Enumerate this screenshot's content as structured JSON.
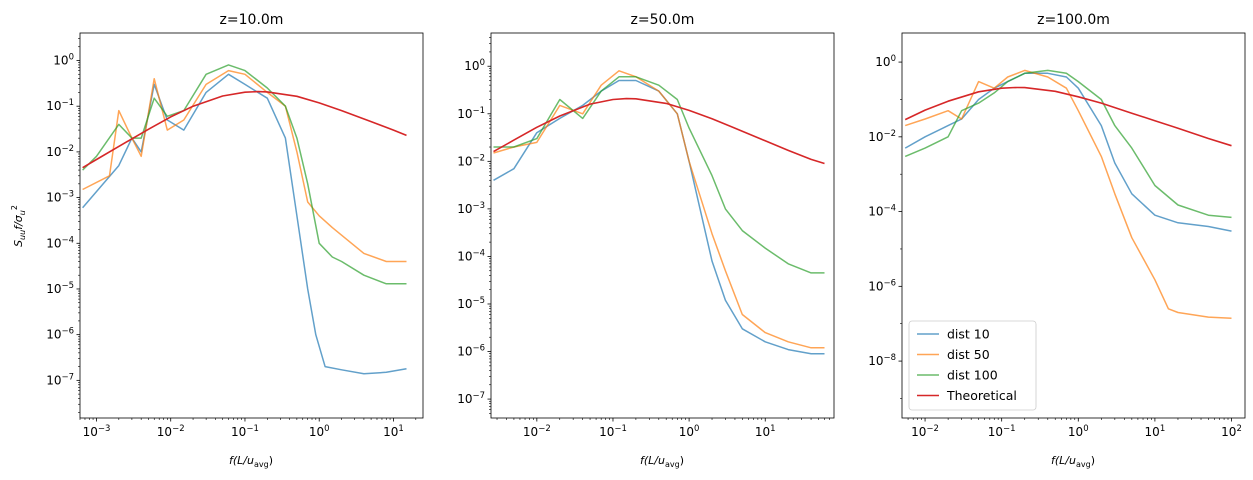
{
  "figure": {
    "ylabel_main": "S",
    "ylabel_sub": "uu",
    "ylabel_mid": "f/σ",
    "ylabel_sub2": "u",
    "ylabel_sup2": "2",
    "xlabel_pre": "f(L/u",
    "xlabel_sub": "avg",
    "xlabel_post": ")"
  },
  "colors": {
    "dist 10": "#1f77b4",
    "dist 50": "#ff7f0e",
    "dist 100": "#2ca02c",
    "Theoretical": "#d62728"
  },
  "legend": {
    "placement": "lower-left of third panel",
    "entries": [
      "dist 10",
      "dist 50",
      "dist 100",
      "Theoretical"
    ]
  },
  "chart_data": [
    {
      "type": "line",
      "title": "z=10.0m",
      "xscale": "log",
      "yscale": "log",
      "xlim": [
        0.0006,
        25
      ],
      "ylim": [
        1.5e-08,
        4
      ],
      "xticks": [
        0.001,
        0.01,
        0.1,
        1,
        10
      ],
      "xtick_labels": [
        [
          "10",
          "−3"
        ],
        [
          "10",
          "−2"
        ],
        [
          "10",
          "−1"
        ],
        [
          "10",
          "0"
        ],
        [
          "10",
          "1"
        ]
      ],
      "yticks": [
        1e-07,
        1e-06,
        1e-05,
        0.0001,
        0.001,
        0.01,
        0.1,
        1
      ],
      "ytick_labels": [
        [
          "10",
          "−7"
        ],
        [
          "10",
          "−6"
        ],
        [
          "10",
          "−5"
        ],
        [
          "10",
          "−4"
        ],
        [
          "10",
          "−3"
        ],
        [
          "10",
          "−2"
        ],
        [
          "10",
          "−1"
        ],
        [
          "10",
          "0"
        ]
      ],
      "series": [
        {
          "name": "dist 10",
          "x": [
            0.00065,
            0.002,
            0.003,
            0.004,
            0.006,
            0.009,
            0.015,
            0.03,
            0.06,
            0.1,
            0.2,
            0.35,
            0.5,
            0.7,
            0.9,
            1.2,
            2,
            4,
            8,
            15
          ],
          "y": [
            0.0006,
            0.005,
            0.02,
            0.01,
            0.3,
            0.05,
            0.03,
            0.2,
            0.5,
            0.3,
            0.15,
            0.02,
            0.0004,
            1e-05,
            1e-06,
            2e-07,
            1.7e-07,
            1.4e-07,
            1.5e-07,
            1.8e-07
          ]
        },
        {
          "name": "dist 50",
          "x": [
            0.00065,
            0.0015,
            0.002,
            0.003,
            0.004,
            0.006,
            0.009,
            0.015,
            0.03,
            0.06,
            0.1,
            0.2,
            0.35,
            0.5,
            0.7,
            1,
            1.5,
            2,
            4,
            8,
            15
          ],
          "y": [
            0.0015,
            0.003,
            0.08,
            0.02,
            0.008,
            0.4,
            0.03,
            0.05,
            0.3,
            0.6,
            0.5,
            0.2,
            0.1,
            0.01,
            0.0008,
            0.0004,
            0.00022,
            0.00015,
            6e-05,
            4e-05,
            4e-05
          ]
        },
        {
          "name": "dist 100",
          "x": [
            0.00065,
            0.001,
            0.002,
            0.003,
            0.004,
            0.006,
            0.009,
            0.015,
            0.03,
            0.06,
            0.1,
            0.2,
            0.35,
            0.5,
            0.7,
            1,
            1.5,
            2,
            4,
            8,
            15
          ],
          "y": [
            0.004,
            0.008,
            0.04,
            0.02,
            0.02,
            0.15,
            0.06,
            0.08,
            0.5,
            0.8,
            0.6,
            0.25,
            0.1,
            0.02,
            0.002,
            0.0001,
            5e-05,
            4e-05,
            2e-05,
            1.3e-05,
            1.3e-05
          ]
        },
        {
          "name": "Theoretical",
          "x": [
            0.00065,
            0.001,
            0.002,
            0.005,
            0.01,
            0.02,
            0.05,
            0.1,
            0.15,
            0.2,
            0.5,
            1,
            2,
            5,
            10,
            15
          ],
          "y": [
            0.0045,
            0.0068,
            0.0132,
            0.0312,
            0.0583,
            0.1,
            0.167,
            0.202,
            0.209,
            0.206,
            0.165,
            0.118,
            0.08,
            0.046,
            0.03,
            0.023
          ]
        }
      ]
    },
    {
      "type": "line",
      "title": "z=50.0m",
      "xscale": "log",
      "yscale": "log",
      "xlim": [
        0.0025,
        80
      ],
      "ylim": [
        4e-08,
        5
      ],
      "xticks": [
        0.01,
        0.1,
        1,
        10
      ],
      "xtick_labels": [
        [
          "10",
          "−2"
        ],
        [
          "10",
          "−1"
        ],
        [
          "10",
          "0"
        ],
        [
          "10",
          "1"
        ]
      ],
      "yticks": [
        1e-07,
        1e-06,
        1e-05,
        0.0001,
        0.001,
        0.01,
        0.1,
        1
      ],
      "ytick_labels": [
        [
          "10",
          "−7"
        ],
        [
          "10",
          "−6"
        ],
        [
          "10",
          "−5"
        ],
        [
          "10",
          "−4"
        ],
        [
          "10",
          "−3"
        ],
        [
          "10",
          "−2"
        ],
        [
          "10",
          "−1"
        ],
        [
          "10",
          "0"
        ]
      ],
      "series": [
        {
          "name": "dist 10",
          "x": [
            0.0027,
            0.005,
            0.01,
            0.02,
            0.04,
            0.07,
            0.12,
            0.2,
            0.4,
            0.7,
            1,
            2,
            3,
            5,
            10,
            20,
            40,
            60
          ],
          "y": [
            0.004,
            0.007,
            0.04,
            0.08,
            0.15,
            0.3,
            0.5,
            0.5,
            0.3,
            0.1,
            0.01,
            8e-05,
            1.2e-05,
            3e-06,
            1.6e-06,
            1.1e-06,
            9e-07,
            9e-07
          ]
        },
        {
          "name": "dist 50",
          "x": [
            0.0027,
            0.005,
            0.01,
            0.02,
            0.04,
            0.07,
            0.12,
            0.2,
            0.4,
            0.7,
            1,
            2,
            3,
            5,
            10,
            20,
            40,
            60
          ],
          "y": [
            0.015,
            0.02,
            0.025,
            0.15,
            0.1,
            0.4,
            0.8,
            0.6,
            0.3,
            0.1,
            0.01,
            0.0003,
            5e-05,
            6e-06,
            2.5e-06,
            1.6e-06,
            1.2e-06,
            1.2e-06
          ]
        },
        {
          "name": "dist 100",
          "x": [
            0.0027,
            0.005,
            0.01,
            0.02,
            0.04,
            0.07,
            0.12,
            0.2,
            0.4,
            0.7,
            1,
            2,
            3,
            5,
            10,
            20,
            40,
            60
          ],
          "y": [
            0.02,
            0.02,
            0.03,
            0.2,
            0.08,
            0.3,
            0.6,
            0.6,
            0.4,
            0.2,
            0.05,
            0.005,
            0.001,
            0.00035,
            0.00015,
            7e-05,
            4.5e-05,
            4.5e-05
          ]
        },
        {
          "name": "Theoretical",
          "x": [
            0.0027,
            0.005,
            0.01,
            0.02,
            0.05,
            0.1,
            0.15,
            0.2,
            0.5,
            1,
            2,
            5,
            10,
            20,
            40,
            60
          ],
          "y": [
            0.016,
            0.028,
            0.052,
            0.09,
            0.16,
            0.2,
            0.209,
            0.207,
            0.165,
            0.118,
            0.079,
            0.043,
            0.027,
            0.017,
            0.011,
            0.009
          ]
        }
      ]
    },
    {
      "type": "line",
      "title": "z=100.0m",
      "xscale": "log",
      "yscale": "log",
      "xlim": [
        0.005,
        150
      ],
      "ylim": [
        3e-10,
        6
      ],
      "xticks": [
        0.01,
        0.1,
        1,
        10,
        100
      ],
      "xtick_labels": [
        [
          "10",
          "−2"
        ],
        [
          "10",
          "−1"
        ],
        [
          "10",
          "0"
        ],
        [
          "10",
          "1"
        ],
        [
          "10",
          "2"
        ]
      ],
      "yticks": [
        1e-08,
        1e-06,
        0.0001,
        0.01,
        1
      ],
      "ytick_labels": [
        [
          "10",
          "−8"
        ],
        [
          "10",
          "−6"
        ],
        [
          "10",
          "−4"
        ],
        [
          "10",
          "−2"
        ],
        [
          "10",
          "0"
        ]
      ],
      "series": [
        {
          "name": "dist 10",
          "x": [
            0.0055,
            0.01,
            0.02,
            0.03,
            0.05,
            0.08,
            0.12,
            0.2,
            0.4,
            0.7,
            1,
            2,
            3,
            5,
            10,
            20,
            50,
            100
          ],
          "y": [
            0.005,
            0.01,
            0.02,
            0.03,
            0.1,
            0.2,
            0.3,
            0.5,
            0.5,
            0.4,
            0.2,
            0.02,
            0.002,
            0.0003,
            8e-05,
            5e-05,
            4e-05,
            3e-05
          ]
        },
        {
          "name": "dist 50",
          "x": [
            0.0055,
            0.01,
            0.02,
            0.03,
            0.05,
            0.08,
            0.12,
            0.2,
            0.4,
            0.7,
            1,
            2,
            3,
            5,
            10,
            15,
            20,
            50,
            100
          ],
          "y": [
            0.02,
            0.03,
            0.05,
            0.03,
            0.3,
            0.2,
            0.4,
            0.6,
            0.4,
            0.2,
            0.05,
            0.003,
            0.0003,
            2e-05,
            1.5e-06,
            2.5e-07,
            2e-07,
            1.5e-07,
            1.4e-07
          ]
        },
        {
          "name": "dist 100",
          "x": [
            0.0055,
            0.01,
            0.02,
            0.03,
            0.05,
            0.08,
            0.12,
            0.2,
            0.4,
            0.7,
            1,
            2,
            3,
            5,
            10,
            20,
            50,
            100
          ],
          "y": [
            0.003,
            0.005,
            0.01,
            0.05,
            0.08,
            0.15,
            0.3,
            0.5,
            0.6,
            0.5,
            0.3,
            0.1,
            0.02,
            0.005,
            0.0005,
            0.00015,
            8e-05,
            7e-05
          ]
        },
        {
          "name": "Theoretical",
          "x": [
            0.0055,
            0.01,
            0.02,
            0.05,
            0.1,
            0.15,
            0.2,
            0.5,
            1,
            2,
            5,
            10,
            20,
            50,
            100
          ],
          "y": [
            0.029,
            0.052,
            0.09,
            0.16,
            0.2,
            0.209,
            0.207,
            0.165,
            0.118,
            0.08,
            0.043,
            0.027,
            0.017,
            0.009,
            0.0058
          ]
        }
      ]
    }
  ]
}
